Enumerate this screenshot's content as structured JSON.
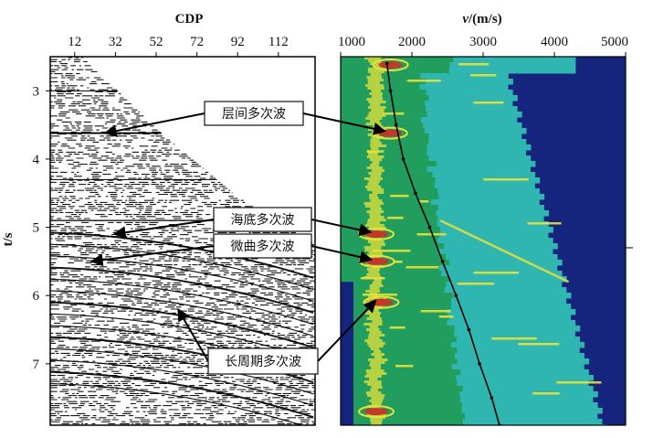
{
  "chart_data": [
    {
      "type": "heatmap",
      "panel": "seismic-gather",
      "x_axis": {
        "label": "CDP",
        "position": "top",
        "ticks": [
          12,
          32,
          52,
          72,
          92,
          112
        ],
        "range": [
          0,
          130
        ]
      },
      "y_axis": {
        "label": "t/s",
        "ticks": [
          3,
          4,
          5,
          6,
          7
        ],
        "range": [
          2.5,
          7.9
        ]
      }
    },
    {
      "type": "heatmap",
      "panel": "velocity-spectrum",
      "x_axis": {
        "label_prefix": "v",
        "label_suffix": "/(m/s)",
        "position": "top",
        "ticks": [
          1000,
          2000,
          3000,
          4000,
          5000
        ],
        "range": [
          1000,
          5000
        ]
      },
      "y_axis": {
        "range": [
          2.5,
          7.9
        ]
      },
      "velocity_trend": {
        "t": [
          2.6,
          3.0,
          3.5,
          4.0,
          4.5,
          5.0,
          5.5,
          6.0,
          6.5,
          7.0,
          7.5,
          7.9
        ],
        "v": [
          1650,
          1700,
          1780,
          1880,
          2050,
          2250,
          2430,
          2620,
          2800,
          2950,
          3120,
          3230
        ]
      },
      "colors": [
        "#15257e",
        "#2fb6b0",
        "#1f9a4f",
        "#e8e23a",
        "#c0392b"
      ]
    }
  ],
  "annotations": [
    {
      "label": "层间多次波",
      "t": 3.6
    },
    {
      "label": "海底多次波",
      "t": 5.1
    },
    {
      "label": "微曲多次波",
      "t": 5.5
    },
    {
      "label": "长周期多次波",
      "t": 6.2
    }
  ]
}
